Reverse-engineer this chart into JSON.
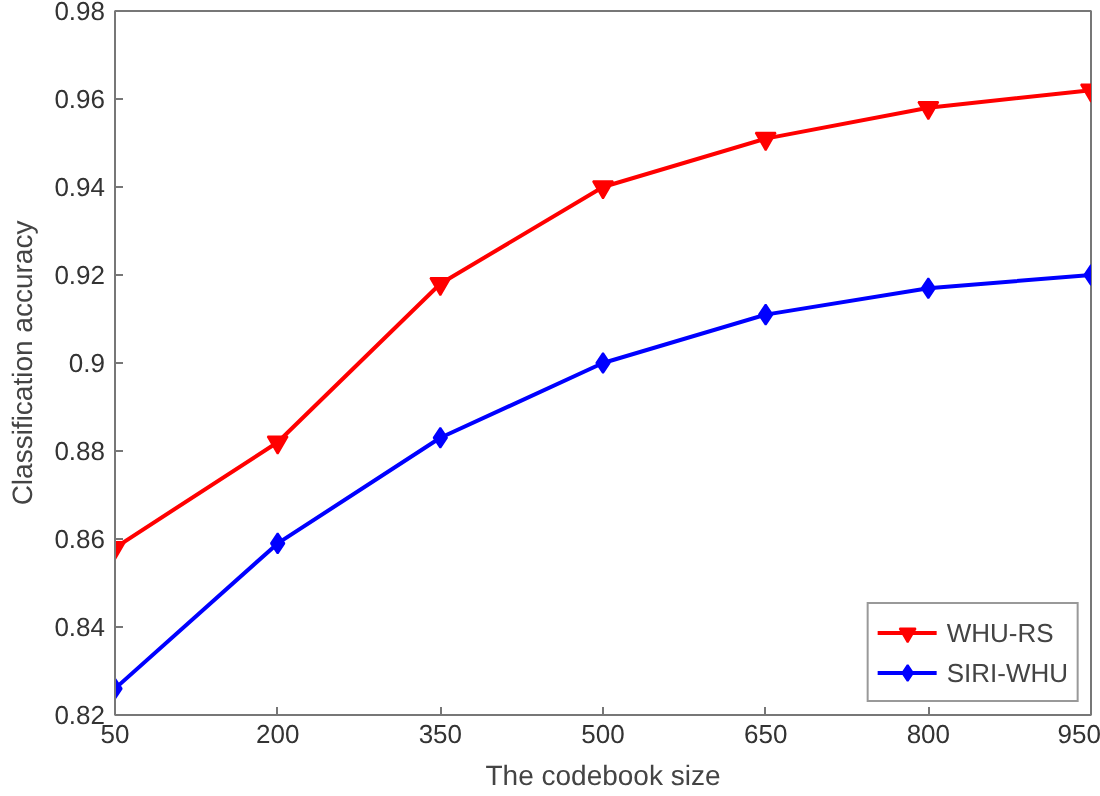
{
  "chart_data": {
    "type": "line",
    "xlabel": "The codebook size",
    "ylabel": "Classification accuracy",
    "x": [
      50,
      200,
      350,
      500,
      650,
      800,
      950
    ],
    "series": [
      {
        "name": "WHU-RS",
        "color": "#ff0000",
        "marker": "triangle",
        "values": [
          0.858,
          0.882,
          0.918,
          0.94,
          0.951,
          0.958,
          0.962
        ]
      },
      {
        "name": "SIRI-WHU",
        "color": "#0000ff",
        "marker": "diamond",
        "values": [
          0.826,
          0.859,
          0.883,
          0.9,
          0.911,
          0.917,
          0.92
        ]
      }
    ],
    "xlim": [
      50,
      950
    ],
    "xticks": [
      50,
      200,
      350,
      500,
      650,
      800,
      950
    ],
    "ylim": [
      0.82,
      0.98
    ],
    "yticks": [
      0.82,
      0.84,
      0.86,
      0.88,
      0.9,
      0.92,
      0.94,
      0.96,
      0.98
    ],
    "grid": false,
    "legend": "bottom right",
    "line_style": "solid"
  }
}
